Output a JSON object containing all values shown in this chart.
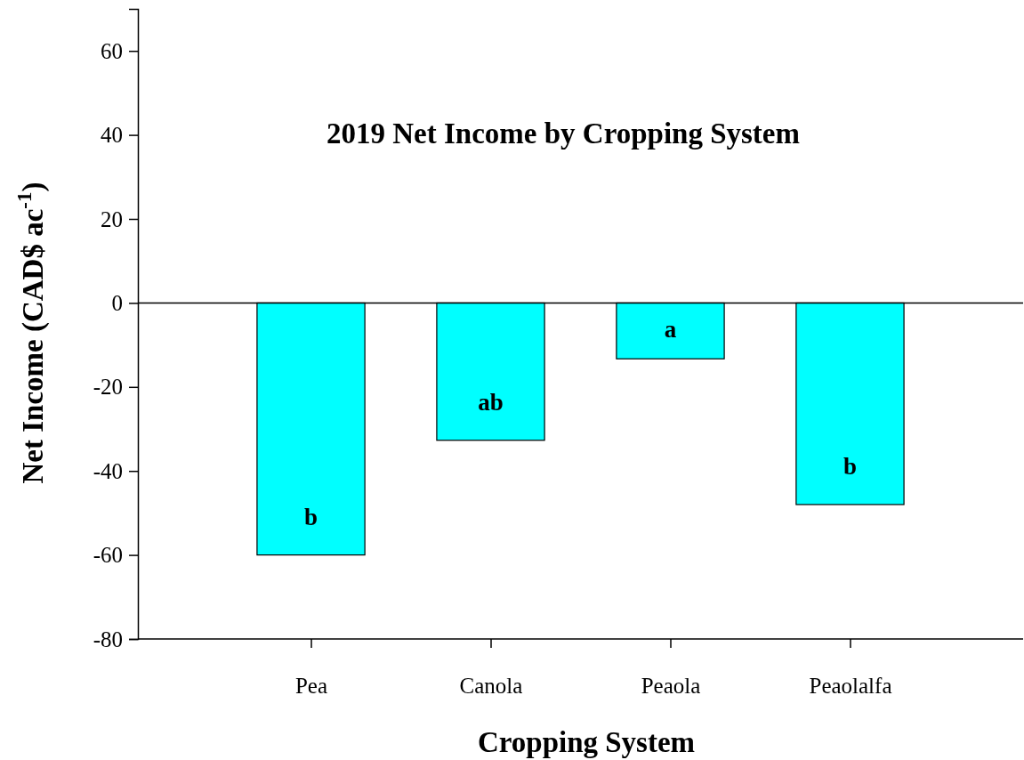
{
  "chart_data": {
    "type": "bar",
    "title": "2019 Net Income by Cropping System",
    "xlabel": "Cropping System",
    "ylabel": "Net Income (CAD$ ac$^{-1}$)",
    "categories": [
      "Pea",
      "Canola",
      "Peaola",
      "Peaolalfa"
    ],
    "values": [
      -60,
      -32.7,
      -13.3,
      -48
    ],
    "color": "#00ffff",
    "ylim": [
      -80,
      70
    ],
    "yticks": [
      -80,
      -60,
      -40,
      -20,
      0,
      20,
      40,
      60
    ],
    "grid": false,
    "ref_lines": [
      {
        "axis": "y",
        "value": 0,
        "color": "#000000"
      }
    ],
    "annotations": [
      "b",
      "ab",
      "a",
      "b"
    ]
  }
}
